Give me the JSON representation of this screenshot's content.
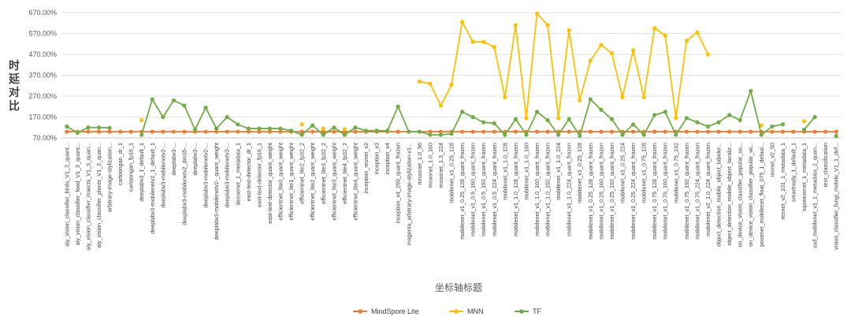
{
  "chart_data": {
    "type": "line",
    "title": "",
    "xlabel": "坐标轴标题",
    "ylabel": "时延对比",
    "ylim": [
      70,
      670
    ],
    "yticks": [
      "70.00%",
      "170.00%",
      "270.00%",
      "370.00%",
      "470.00%",
      "570.00%",
      "670.00%"
    ],
    "grid": true,
    "legend": "bottom",
    "categories": [
      "aiy_vision_classifier_birds_V1_3_quant...",
      "aiy_vision_classifier_food_V1_3_quant...",
      "aiy_vision_classifier_insects_V1_3_quan...",
      "aiy_vision_classifier_plants_V1_3_quan...",
      "arbitrary-image-stylization...",
      "cartoongan_dr_1",
      "cartoongan_fp16_1",
      "deeplabv3_1_default_1",
      "deeplabv3-mobilenetv2_1_default_1",
      "deeplabv3-mobilenetv2-...",
      "deeplabv3-...",
      "deeplabv3-mobilenetv2_dm05-...",
      "deeplabv3-...",
      "deeplabv3-mobilenetv2-...",
      "deeplabv3-mobilenetv2-_quant_weight",
      "deeplabv3-mobilenetv3-...",
      "densenet_1_metadata_1",
      "east-text-detector_dr_1",
      "east-text-detector_fp16_1",
      "east-text-detector_quant_weight",
      "efficientnet_lite0_quant_weight",
      "efficientnet_lite1_quant_weight",
      "efficientnet_lite2_fp32_2",
      "efficientnet_lite2_quant_weight",
      "efficientnet_lite3_fp32_2",
      "efficientnet_lite3_quant_weight",
      "efficientnet_lite4_fp32_2",
      "efficientnet_lite4_quant_weight",
      "inception_resnet_v2",
      "inception_v3",
      "inception_v4",
      "inception_v4_299_quant_frozen",
      "magenta_arbitrary-image-stylization-v1...",
      "mnasnet_1.0_96",
      "mnasnet_1.0_160",
      "mnasnet_1.3_224",
      "mobilenet_v1_0.25_128",
      "mobilenet_v1_0.25_128_quant_frozen",
      "mobilenet_v1_0.5_160_quant_frozen",
      "mobilenet_v1_0.5_192_quant_frozen",
      "mobilenet_v1_0.5_224_quant_frozen",
      "mobilenet_v1_1.0_128",
      "mobilenet_v1_1.0_128_quant_frozen",
      "mobilenet_v1_1.0_160",
      "mobilenet_v1_1.0_160_quant_frozen",
      "mobilenet_v1_1.0_192_quant_frozen",
      "mobilenet_v1_1.0_224",
      "mobilenet_v1_1.0_224_quant_frozen",
      "mobilenet_v1_0.25_128",
      "mobilenet_v1_0.25_128_quant_frozen",
      "mobilenet_v1_0.25_160_quant_frozen",
      "mobilenet_v1_0.25_192_quant_frozen",
      "mobilenet_v1_0.25_224",
      "mobilenet_v1_0.25_224_quant_frozen",
      "mobilenet_v1_0.75_128",
      "mobilenet_v1_0.75_128_quant_frozen",
      "mobilenet_v1_0.75_160_quant_frozen",
      "mobilenet_v1_0.75_192",
      "mobilenet_v1_0.75_192_quant_frozen",
      "mobilenet_v1_0.75_224_quant_frozen",
      "mobilenet_v2_1.0_224_quant_frozen",
      "object_detection_mobile_object_labeler...",
      "object_detection_mobile_object_localiz...",
      "on_device_vision_classifier_popular_us...",
      "on_device_vision_classifier_popular_wi...",
      "posenet_mobilenet_float_075_1_defaul...",
      "resnet_v2_50",
      "resnet_v2_101_1_metadata_1",
      "smartreply_1_default_1",
      "squeezenet_1_metadata_1",
      "ssd_mobilenet_v1_1_metadata_2_quan...",
      "text_classification",
      "vision_classifier_fungi_mobile_V1_1_def..."
    ],
    "series": [
      {
        "name": "MindSpore Lite",
        "color": "#ed7d31",
        "values": [
          100,
          100,
          100,
          100,
          100,
          100,
          100,
          100,
          100,
          100,
          100,
          100,
          100,
          100,
          100,
          100,
          100,
          100,
          100,
          100,
          100,
          100,
          100,
          100,
          100,
          100,
          100,
          100,
          100,
          100,
          100,
          100,
          100,
          100,
          100,
          100,
          100,
          100,
          100,
          100,
          100,
          100,
          100,
          100,
          100,
          100,
          100,
          100,
          100,
          100,
          100,
          100,
          100,
          100,
          100,
          100,
          100,
          100,
          100,
          100,
          100,
          100,
          100,
          100,
          100,
          100,
          100,
          100,
          100,
          100,
          100,
          100,
          100
        ]
      },
      {
        "name": "MNN",
        "color": "#ffc000",
        "values": [
          null,
          null,
          null,
          null,
          null,
          null,
          null,
          155,
          null,
          null,
          null,
          null,
          null,
          null,
          null,
          null,
          null,
          null,
          null,
          null,
          null,
          null,
          135,
          null,
          115,
          null,
          112,
          null,
          null,
          null,
          null,
          null,
          null,
          340,
          330,
          225,
          325,
          625,
          530,
          530,
          505,
          265,
          610,
          165,
          665,
          610,
          165,
          585,
          250,
          440,
          515,
          475,
          265,
          490,
          265,
          595,
          560,
          165,
          535,
          575,
          470,
          null,
          null,
          null,
          null,
          130,
          null,
          null,
          null,
          150,
          null,
          null,
          null
        ]
      },
      {
        "name": "TF",
        "color": "#70ad47",
        "values": [
          125,
          95,
          120,
          120,
          118,
          null,
          null,
          85,
          255,
          170,
          250,
          225,
          110,
          215,
          115,
          170,
          135,
          115,
          115,
          115,
          115,
          105,
          85,
          130,
          85,
          120,
          85,
          120,
          105,
          105,
          105,
          220,
          100,
          100,
          85,
          85,
          90,
          195,
          170,
          145,
          140,
          85,
          160,
          85,
          195,
          155,
          85,
          160,
          80,
          255,
          205,
          160,
          85,
          135,
          85,
          180,
          195,
          85,
          165,
          145,
          125,
          145,
          180,
          155,
          295,
          85,
          125,
          135,
          null,
          110,
          170,
          null,
          80
        ]
      }
    ]
  }
}
